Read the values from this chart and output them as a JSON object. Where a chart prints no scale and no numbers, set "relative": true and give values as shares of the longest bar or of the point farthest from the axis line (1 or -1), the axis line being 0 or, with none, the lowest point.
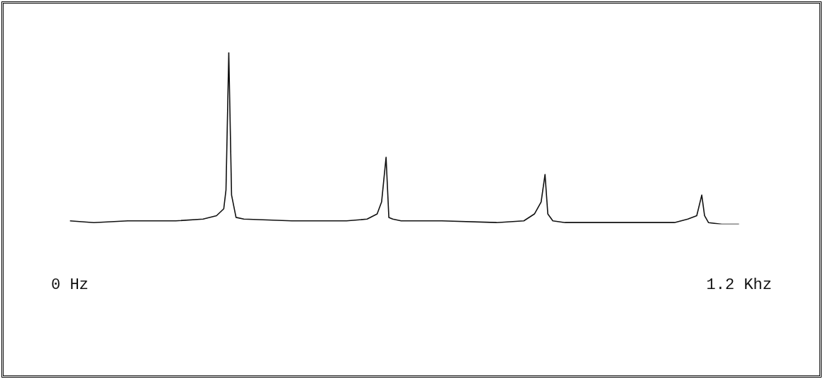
{
  "chart_data": {
    "type": "line",
    "relative": true,
    "xlim": [
      0,
      1.2
    ],
    "xticks": [
      {
        "value": 0,
        "label": "0 Hz"
      },
      {
        "value": 1.2,
        "label": "1.2 Khz"
      }
    ],
    "grid": false,
    "legend": false,
    "marker": "none",
    "line_style": "solid",
    "series": [
      {
        "color": "#111111",
        "x": [
          0,
          0.043,
          0.104,
          0.19,
          0.239,
          0.263,
          0.276,
          0.28,
          0.285,
          0.29,
          0.298,
          0.312,
          0.398,
          0.496,
          0.533,
          0.551,
          0.559,
          0.567,
          0.572,
          0.579,
          0.594,
          0.667,
          0.765,
          0.814,
          0.833,
          0.845,
          0.852,
          0.857,
          0.866,
          0.888,
          0.986,
          1.084,
          1.108,
          1.124,
          1.133,
          1.138,
          1.145,
          1.169,
          1.2
        ],
        "values": [
          0.02,
          0.01,
          0.02,
          0.02,
          0.03,
          0.05,
          0.09,
          0.2,
          1,
          0.17,
          0.04,
          0.03,
          0.02,
          0.02,
          0.03,
          0.06,
          0.13,
          0.39,
          0.04,
          0.03,
          0.02,
          0.02,
          0.01,
          0.02,
          0.06,
          0.13,
          0.29,
          0.06,
          0.02,
          0.01,
          0.01,
          0.01,
          0.03,
          0.05,
          0.17,
          0.05,
          0.01,
          0,
          0
        ]
      }
    ]
  }
}
